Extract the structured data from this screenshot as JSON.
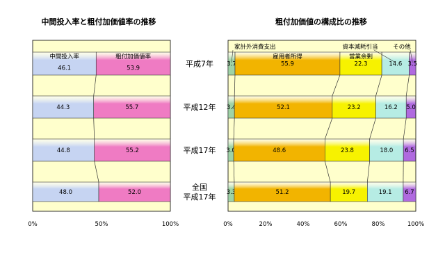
{
  "chart_data": [
    {
      "type": "bar",
      "orientation": "horizontal",
      "stacked": "percent",
      "title": "中間投入率と粗付加価値率の推移",
      "categories": [
        "平成7年",
        "平成12年",
        "平成17年",
        "全国 平成17年"
      ],
      "series": [
        {
          "name": "中間投入率",
          "values": [
            46.1,
            44.3,
            44.8,
            48.0
          ],
          "color": "#c6d4f2"
        },
        {
          "name": "粗付加価値率",
          "values": [
            53.9,
            55.7,
            55.2,
            52.0
          ],
          "color": "#ef7bc3"
        }
      ],
      "xticks": [
        "0%",
        "50%",
        "100%"
      ],
      "xlim": [
        0,
        100
      ],
      "plot_background": "#ffffcc",
      "grid": false
    },
    {
      "type": "bar",
      "orientation": "horizontal",
      "stacked": "percent",
      "title": "粗付加価値の構成比の推移",
      "categories": [
        "平成7年",
        "平成12年",
        "平成17年",
        "全国 平成17年"
      ],
      "series": [
        {
          "name": "家計外消費支出",
          "values": [
            3.7,
            3.4,
            3.0,
            3.3
          ],
          "color": "#9fd3a6"
        },
        {
          "name": "雇用者所得",
          "values": [
            55.9,
            52.1,
            48.6,
            51.2
          ],
          "color": "#f2b400"
        },
        {
          "name": "営業余剰",
          "values": [
            22.3,
            23.2,
            23.8,
            19.7
          ],
          "color": "#f7f200"
        },
        {
          "name": "資本減耗引当",
          "values": [
            14.6,
            16.2,
            18.0,
            19.1
          ],
          "color": "#b6ece4"
        },
        {
          "name": "その他",
          "values": [
            3.5,
            5.0,
            6.5,
            6.7
          ],
          "color": "#b06ae0"
        }
      ],
      "xticks": [
        "0%",
        "20%",
        "40%",
        "60%",
        "80%",
        "100%"
      ],
      "xlim": [
        0,
        100
      ],
      "plot_background": "#ffffcc",
      "grid": false
    }
  ],
  "row_labels": [
    {
      "lines": [
        "平成7年"
      ]
    },
    {
      "lines": [
        "平成12年"
      ]
    },
    {
      "lines": [
        "平成17年"
      ]
    },
    {
      "lines": [
        "全国",
        "平成17年"
      ]
    }
  ]
}
